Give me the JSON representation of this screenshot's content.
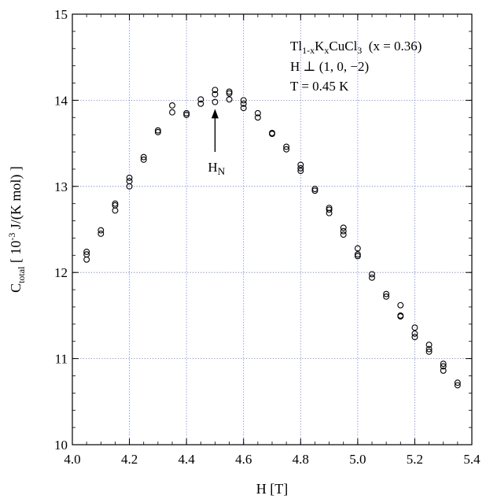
{
  "chart_data": {
    "type": "scatter",
    "xlabel": "H [T]",
    "ylabel": {
      "base": "C",
      "sub": "total",
      "pre": " [ 10",
      "sup": "-3",
      "post": " J/(K mol) ]"
    },
    "xlim": [
      4.0,
      5.4
    ],
    "ylim": [
      10,
      15
    ],
    "xticks": [
      "4.0",
      "4.2",
      "4.4",
      "4.6",
      "4.8",
      "5.0",
      "5.2",
      "5.4"
    ],
    "yticks": [
      "10",
      "11",
      "12",
      "13",
      "14",
      "15"
    ],
    "grid": true,
    "grid_style": "dotted",
    "marker": "open-circle",
    "annotation_lines": [
      {
        "parts": [
          {
            "t": "Tl",
            "s": ""
          },
          {
            "t": "1-x",
            "s": "sub"
          },
          {
            "t": "K",
            "s": ""
          },
          {
            "t": "x",
            "s": "sub"
          },
          {
            "t": "CuCl",
            "s": ""
          },
          {
            "t": "3",
            "s": "sub"
          },
          {
            "t": "  (x = 0.36)",
            "s": ""
          }
        ]
      },
      {
        "parts": [
          {
            "t": "H ⊥ (1, 0, −2)",
            "s": ""
          }
        ]
      },
      {
        "parts": [
          {
            "t": "T = 0.45 K",
            "s": ""
          }
        ]
      }
    ],
    "arrow_annotation": {
      "base": "H",
      "sub": "N",
      "x": 4.5,
      "y_tip": 13.9,
      "y_tail": 13.4
    },
    "points": [
      [
        4.05,
        12.24
      ],
      [
        4.05,
        12.21
      ],
      [
        4.05,
        12.15
      ],
      [
        4.1,
        12.49
      ],
      [
        4.1,
        12.45
      ],
      [
        4.15,
        12.8
      ],
      [
        4.15,
        12.78
      ],
      [
        4.15,
        12.72
      ],
      [
        4.2,
        13.1
      ],
      [
        4.2,
        13.06
      ],
      [
        4.2,
        13.0
      ],
      [
        4.25,
        13.34
      ],
      [
        4.25,
        13.31
      ],
      [
        4.3,
        13.65
      ],
      [
        4.3,
        13.63
      ],
      [
        4.35,
        13.94
      ],
      [
        4.35,
        13.86
      ],
      [
        4.4,
        13.85
      ],
      [
        4.4,
        13.83
      ],
      [
        4.45,
        14.01
      ],
      [
        4.45,
        13.96
      ],
      [
        4.5,
        14.12
      ],
      [
        4.5,
        14.07
      ],
      [
        4.5,
        13.98
      ],
      [
        4.55,
        14.1
      ],
      [
        4.55,
        14.08
      ],
      [
        4.55,
        14.01
      ],
      [
        4.6,
        14.0
      ],
      [
        4.6,
        13.96
      ],
      [
        4.6,
        13.91
      ],
      [
        4.65,
        13.85
      ],
      [
        4.65,
        13.8
      ],
      [
        4.7,
        13.62
      ],
      [
        4.7,
        13.61
      ],
      [
        4.75,
        13.46
      ],
      [
        4.75,
        13.43
      ],
      [
        4.8,
        13.25
      ],
      [
        4.8,
        13.21
      ],
      [
        4.8,
        13.18
      ],
      [
        4.85,
        12.97
      ],
      [
        4.85,
        12.95
      ],
      [
        4.9,
        12.75
      ],
      [
        4.9,
        12.73
      ],
      [
        4.9,
        12.69
      ],
      [
        4.95,
        12.52
      ],
      [
        4.95,
        12.48
      ],
      [
        4.95,
        12.44
      ],
      [
        5.0,
        12.28
      ],
      [
        5.0,
        12.21
      ],
      [
        5.0,
        12.19
      ],
      [
        5.05,
        11.98
      ],
      [
        5.05,
        11.94
      ],
      [
        5.1,
        11.75
      ],
      [
        5.1,
        11.72
      ],
      [
        5.15,
        11.62
      ],
      [
        5.15,
        11.5
      ],
      [
        5.15,
        11.49
      ],
      [
        5.2,
        11.36
      ],
      [
        5.2,
        11.29
      ],
      [
        5.2,
        11.25
      ],
      [
        5.25,
        11.16
      ],
      [
        5.25,
        11.11
      ],
      [
        5.25,
        11.08
      ],
      [
        5.3,
        10.94
      ],
      [
        5.3,
        10.91
      ],
      [
        5.3,
        10.86
      ],
      [
        5.35,
        10.72
      ],
      [
        5.35,
        10.69
      ]
    ]
  }
}
